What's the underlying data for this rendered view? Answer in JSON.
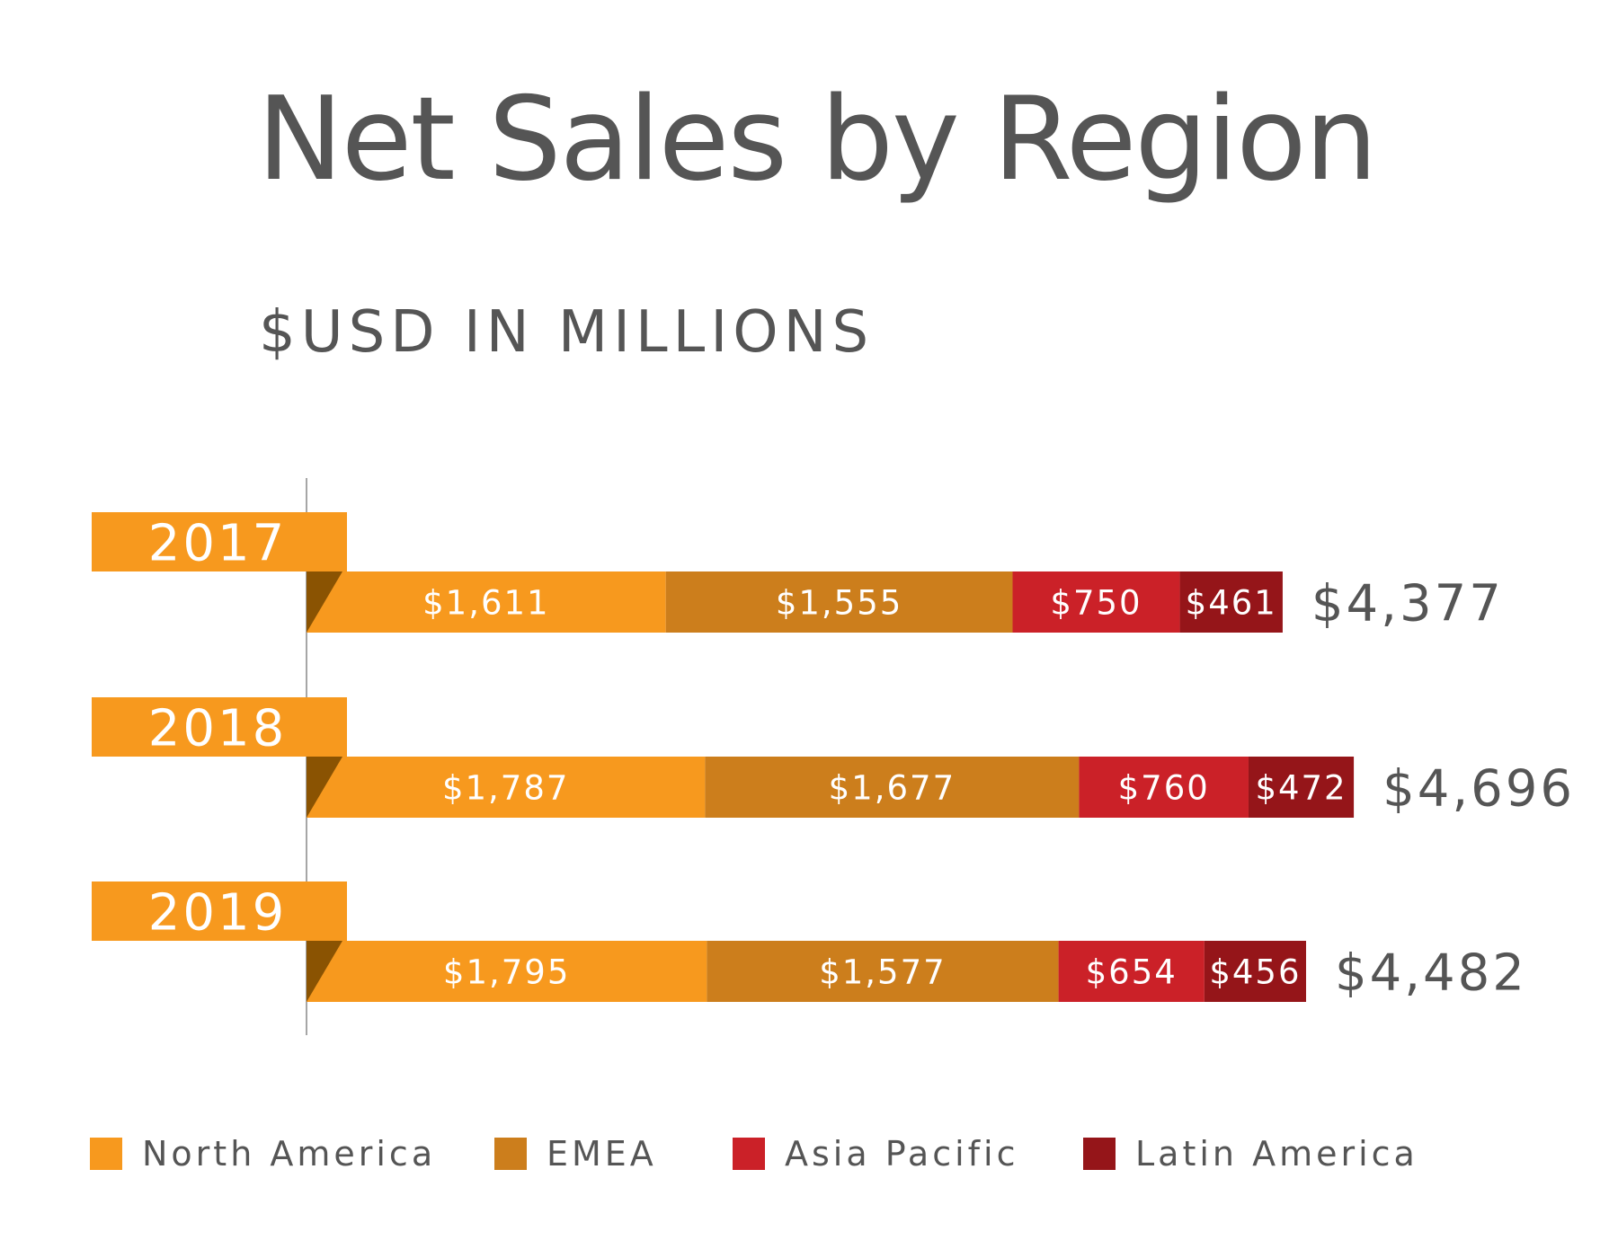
{
  "title": "Net Sales by Region",
  "subtitle": "$USD IN MILLIONS",
  "colors": {
    "north_america": "#F7991E",
    "emea": "#CC7E1C",
    "asia_pacific": "#CB2128",
    "latin_america": "#951519",
    "fold": "#8A5302",
    "text": "#555555",
    "label": "#FFFFFF"
  },
  "chart_data": {
    "type": "bar",
    "orientation": "horizontal",
    "stacked": true,
    "categories": [
      "2017",
      "2018",
      "2019"
    ],
    "series": [
      {
        "name": "North America",
        "values": [
          1611,
          1787,
          1795
        ],
        "labels": [
          "$1,611",
          "$1,787",
          "$1,795"
        ]
      },
      {
        "name": "EMEA",
        "values": [
          1555,
          1677,
          1577
        ],
        "labels": [
          "$1,555",
          "$1,677",
          "$1,577"
        ]
      },
      {
        "name": "Asia Pacific",
        "values": [
          750,
          760,
          654
        ],
        "labels": [
          "$750",
          "$760",
          "$654"
        ]
      },
      {
        "name": "Latin America",
        "values": [
          461,
          472,
          456
        ],
        "labels": [
          "$461",
          "$472",
          "$456"
        ]
      }
    ],
    "totals": [
      "$4,377",
      "$4,696",
      "$4,482"
    ],
    "title": "Net Sales by Region",
    "subtitle": "$USD IN MILLIONS",
    "legend": "bottom",
    "grid": false
  },
  "legend": [
    {
      "label": "North America",
      "color": "#F7991E"
    },
    {
      "label": "EMEA",
      "color": "#CC7E1C"
    },
    {
      "label": "Asia Pacific",
      "color": "#CB2128"
    },
    {
      "label": "Latin America",
      "color": "#951519"
    }
  ]
}
